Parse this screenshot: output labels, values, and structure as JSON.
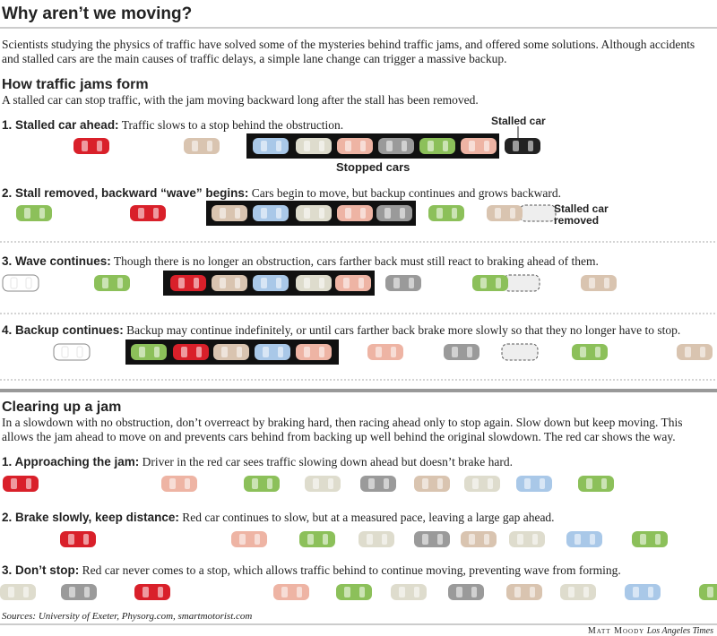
{
  "header": {
    "title": "Why aren’t we moving?",
    "intro": "Scientists studying the physics of traffic have solved some of the mysteries behind traffic jams, and offered some solutions. Although accidents and stalled cars are the main causes of traffic delays, a simple lane change can trigger a massive backup."
  },
  "jam": {
    "heading": "How traffic jams form",
    "description": "A stalled car can stop traffic, with the jam moving backward long after the stall has been removed.",
    "steps": [
      {
        "label": "1. Stalled car ahead:",
        "text": "Traffic slows to a stop behind the obstruction."
      },
      {
        "label": "2. Stall removed, backward “wave” begins:",
        "text": "Cars begin to move, but backup continues and grows backward."
      },
      {
        "label": "3. Wave continues:",
        "text": "Though there is no longer an obstruction, cars farther back must still react to braking ahead of them."
      },
      {
        "label": "4. Backup continues:",
        "text": "Backup may continue indefinitely, or until cars farther back brake more slowly so that they no longer have to stop."
      }
    ],
    "annotations": {
      "stalled_car": "Stalled car",
      "stopped_cars": "Stopped cars",
      "stalled_car_removed": "Stalled car removed"
    }
  },
  "clearing": {
    "heading": "Clearing up a jam",
    "description": "In a slowdown with no obstruction, don’t overreact by braking hard, then racing ahead only to stop again. Slow down but keep moving. This allows the jam ahead to move on and prevents cars behind from backing up well behind the original slowdown. The red car shows the way.",
    "steps": [
      {
        "label": "1. Approaching the jam:",
        "text": "Driver in the red car sees traffic slowing down ahead but doesn’t brake hard."
      },
      {
        "label": "2. Brake slowly, keep distance:",
        "text": "Red car continues to slow, but at a measured pace, leaving a large gap ahead."
      },
      {
        "label": "3. Don’t stop:",
        "text": "Red car never comes to a stop, which allows traffic behind to continue moving, preventing wave from forming."
      }
    ]
  },
  "footer": {
    "sources": "Sources: University of Exeter, Physorg.com, smartmotorist.com",
    "author": "Matt Moody",
    "publisher": "Los Angeles Times"
  }
}
